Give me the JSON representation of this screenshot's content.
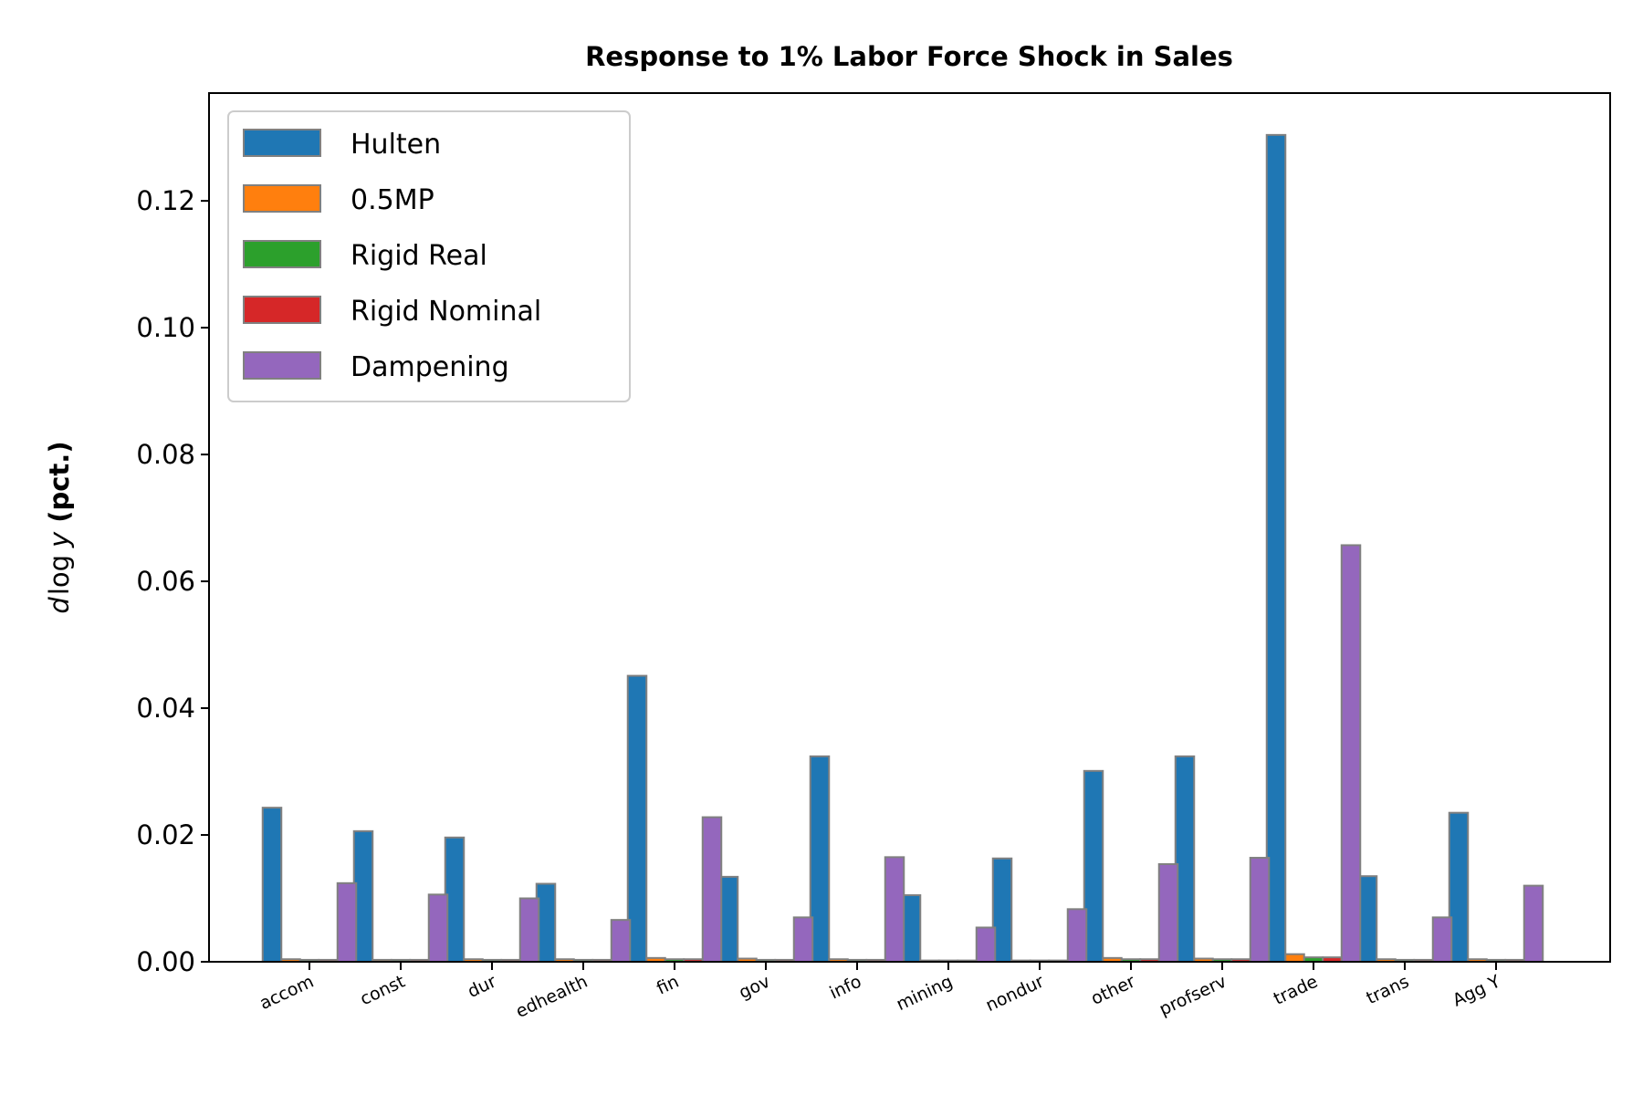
{
  "chart_data": {
    "type": "bar",
    "title": "Response to 1% Labor Force Shock in Sales",
    "ylabel": {
      "italic": "d",
      "log": "log",
      "var": "y",
      "unit": "(pct.)"
    },
    "xlabel": "",
    "ylim": [
      0,
      0.137
    ],
    "yticks": [
      "0.00",
      "0.02",
      "0.04",
      "0.06",
      "0.08",
      "0.10",
      "0.12"
    ],
    "ytick_values": [
      0,
      0.02,
      0.04,
      0.06,
      0.08,
      0.1,
      0.12
    ],
    "categories": [
      "accom",
      "const",
      "dur",
      "edhealth",
      "fin",
      "gov",
      "info",
      "mining",
      "nondur",
      "other",
      "profserv",
      "trade",
      "trans",
      "Agg Y"
    ],
    "legend_position": "upper left",
    "grid": false,
    "series": [
      {
        "name": "Hulten",
        "color": "#1f77b4",
        "values": [
          0.0243,
          0.0206,
          0.0196,
          0.0123,
          0.0451,
          0.0134,
          0.0324,
          0.0105,
          0.0163,
          0.0301,
          0.0324,
          0.1304,
          0.0135,
          0.0235
        ]
      },
      {
        "name": "0.5MP",
        "color": "#ff7f0e",
        "values": [
          0.0004,
          0.0003,
          0.0004,
          0.0004,
          0.0006,
          0.0005,
          0.0004,
          0.0002,
          0.0002,
          0.0006,
          0.0005,
          0.0012,
          0.0004,
          0.0004
        ]
      },
      {
        "name": "Rigid Real",
        "color": "#2ca02c",
        "values": [
          0.0003,
          0.0003,
          0.0003,
          0.0003,
          0.0004,
          0.0003,
          0.0003,
          0.0002,
          0.0002,
          0.0004,
          0.0004,
          0.0007,
          0.0003,
          0.0003
        ]
      },
      {
        "name": "Rigid Nominal",
        "color": "#d62728",
        "values": [
          0.0003,
          0.0003,
          0.0003,
          0.0003,
          0.0004,
          0.0003,
          0.0003,
          0.0002,
          0.0002,
          0.0004,
          0.0004,
          0.0007,
          0.0003,
          0.0003
        ]
      },
      {
        "name": "Dampening",
        "color": "#9467bd",
        "values": [
          0.0124,
          0.0106,
          0.01,
          0.0066,
          0.0228,
          0.007,
          0.0165,
          0.0054,
          0.0083,
          0.0154,
          0.0164,
          0.0657,
          0.007,
          0.012
        ]
      }
    ]
  }
}
